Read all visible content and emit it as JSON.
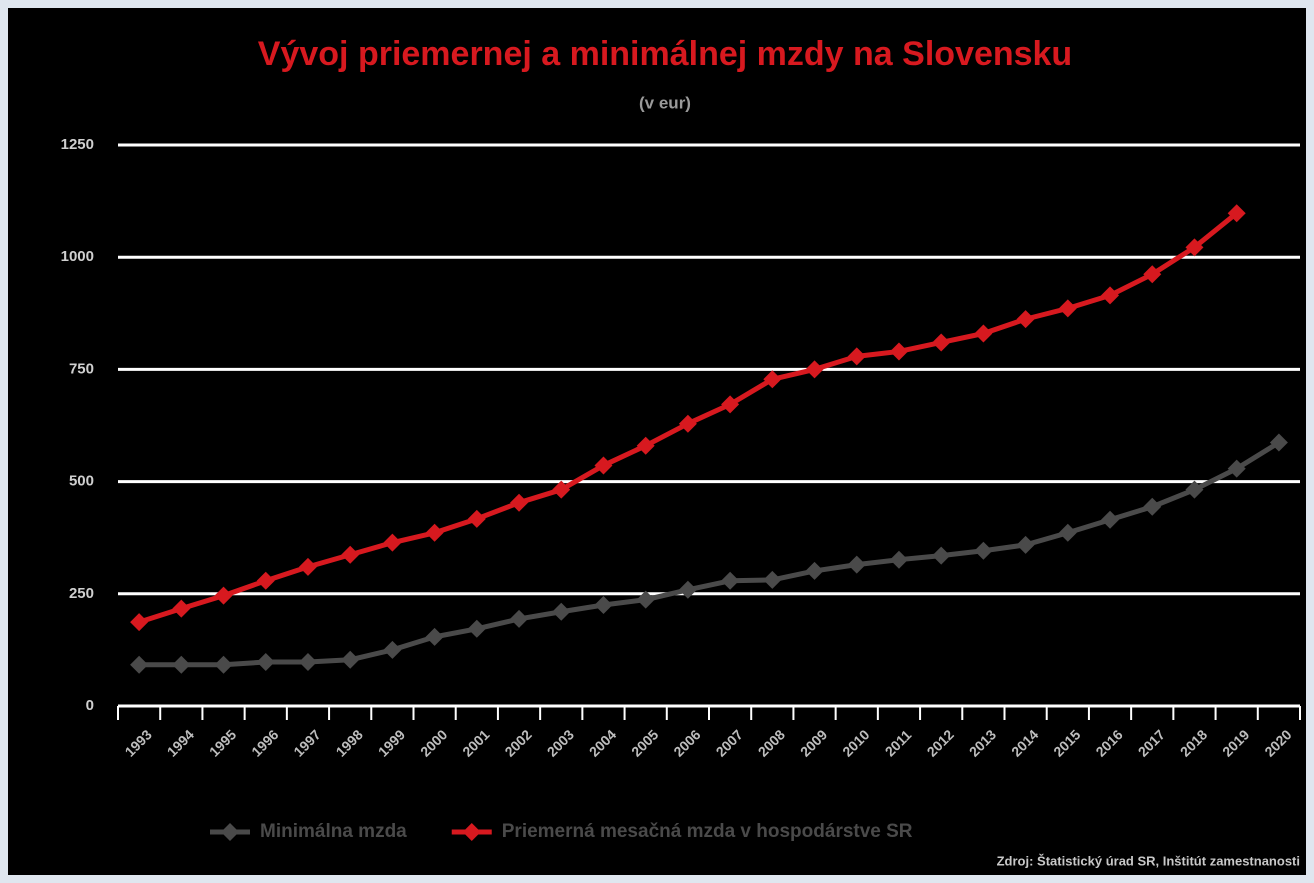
{
  "chart_data": {
    "type": "line",
    "title": "Vývoj priemernej a minimálnej mzdy na Slovensku",
    "subtitle": "(v eur)",
    "source": "Zdroj: Štatistický úrad SR, Inštitút zamestnanosti",
    "categories": [
      "1993",
      "1994",
      "1995",
      "1996",
      "1997",
      "1998",
      "1999",
      "2000",
      "2001",
      "2002",
      "2003",
      "2004",
      "2005",
      "2006",
      "2007",
      "2008",
      "2009",
      "2010",
      "2011",
      "2012",
      "2013",
      "2014",
      "2015",
      "2016",
      "2017",
      "2018",
      "2019",
      "2020"
    ],
    "series": [
      {
        "name": "Minimálna mzda",
        "color": "#4a4a4a",
        "values": [
          92,
          92,
          92,
          98,
          98,
          103,
          125,
          154,
          172,
          194,
          210,
          225,
          237,
          259,
          279,
          281,
          301,
          315,
          326,
          335,
          346,
          359,
          386,
          415,
          444,
          482,
          529,
          587
        ]
      },
      {
        "name": "Priemerná mesačná mzda v hospodárstve SR",
        "color": "#d7191f",
        "values": [
          187,
          217,
          246,
          279,
          310,
          337,
          364,
          386,
          417,
          453,
          482,
          536,
          580,
          629,
          672,
          728,
          750,
          779,
          790,
          810,
          830,
          862,
          886,
          915,
          962,
          1022,
          1098,
          null
        ]
      }
    ],
    "ylim": [
      0,
      1250
    ],
    "yticks": [
      0,
      250,
      500,
      750,
      1000,
      1250
    ],
    "grid": true,
    "legend": "bottom"
  }
}
